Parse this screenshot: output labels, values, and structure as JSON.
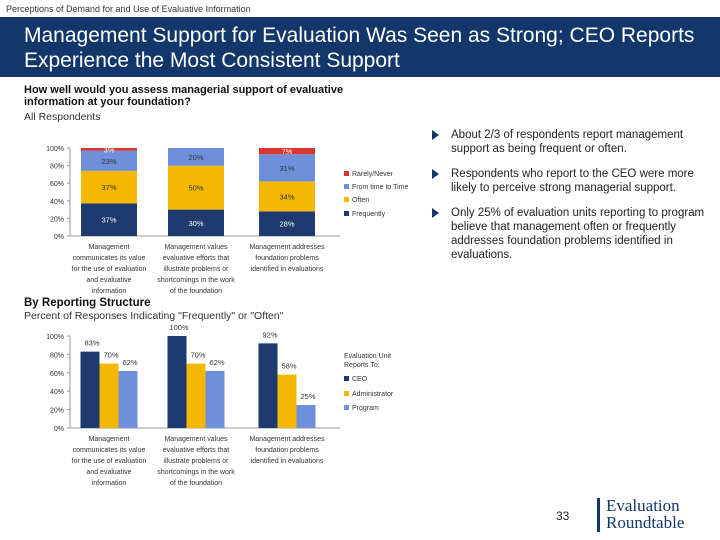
{
  "header": {
    "top_label": "Perceptions of Demand for and Use of Evaluative Information",
    "title": "Management Support for Evaluation Was Seen as Strong; CEO Reports Experience the Most Consistent  Support"
  },
  "question": "How well would you assess managerial support of evaluative information at your foundation?",
  "chart1_sub": "All Respondents",
  "section2_title": "By Reporting Structure",
  "chart2_sub": "Percent of Responses Indicating \"Frequently\" or \"Often\"",
  "chart_data": [
    {
      "type": "bar",
      "stacked": true,
      "categories": [
        [
          "Management",
          "communicates its value",
          "for the use of evaluation",
          "and evaluative",
          "information"
        ],
        [
          "Management values",
          "evaluative efforts that",
          "illustrate problems or",
          "shortcomings in the work",
          "of the foundation"
        ],
        [
          "Management addresses",
          "foundation problems",
          "identified in evaluations"
        ]
      ],
      "series": [
        {
          "name": "Frequently",
          "values": [
            37,
            30,
            28
          ],
          "labels": [
            "37%",
            "30%",
            "28%"
          ],
          "color": "#1e3a6e"
        },
        {
          "name": "Often",
          "values": [
            37,
            50,
            34
          ],
          "labels": [
            "37%",
            "50%",
            "34%"
          ],
          "color": "#f5b800"
        },
        {
          "name": "From time to Time",
          "values": [
            23,
            20,
            31
          ],
          "labels": [
            "23%",
            "20%",
            "31%"
          ],
          "color": "#6e8fdc"
        },
        {
          "name": "Rarely/Never",
          "values": [
            3,
            0,
            7
          ],
          "labels": [
            "3%",
            "",
            "7%"
          ],
          "color": "#d9372b"
        }
      ],
      "legend_order": [
        "Rarely/Never",
        "From time to Time",
        "Often",
        "Frequently"
      ],
      "y_ticks": [
        "0%",
        "20%",
        "40%",
        "60%",
        "80%",
        "100%"
      ],
      "ylim": [
        0,
        100
      ],
      "legend": "right"
    },
    {
      "type": "bar",
      "categories": [
        [
          "Management",
          "communicates its value",
          "for the use of evaluation",
          "and evaluative",
          "information"
        ],
        [
          "Management values",
          "evaluative efforts that",
          "illustrate problems or",
          "shortcomings in the work",
          "of the foundation"
        ],
        [
          "Management addresses",
          "foundation problems",
          "identified in evaluations"
        ]
      ],
      "series": [
        {
          "name": "CEO",
          "values": [
            83,
            100,
            92
          ],
          "labels": [
            "83%",
            "100%",
            "92%"
          ],
          "color": "#1e3a6e"
        },
        {
          "name": "Administrator",
          "values": [
            70,
            70,
            58
          ],
          "labels": [
            "70%",
            "70%",
            "58%"
          ],
          "color": "#f5b800"
        },
        {
          "name": "Program",
          "values": [
            62,
            62,
            25
          ],
          "labels": [
            "62%",
            "62%",
            "25%"
          ],
          "color": "#6e8fdc"
        }
      ],
      "legend_title": [
        "Evaluation Unit",
        "Reports To:"
      ],
      "y_ticks": [
        "0%",
        "20%",
        "40%",
        "60%",
        "80%",
        "100%"
      ],
      "ylim": [
        0,
        100
      ],
      "legend": "right"
    }
  ],
  "bullets": [
    "About 2/3 of respondents report management support as being frequent or often.",
    "Respondents who report to the CEO were more likely to perceive strong managerial support.",
    "Only 25% of evaluation units reporting to program believe that management often or frequently addresses foundation problems identified in evaluations."
  ],
  "footer": {
    "page_number": "33",
    "logo_line1": "Evaluation",
    "logo_line2": "Roundtable"
  }
}
